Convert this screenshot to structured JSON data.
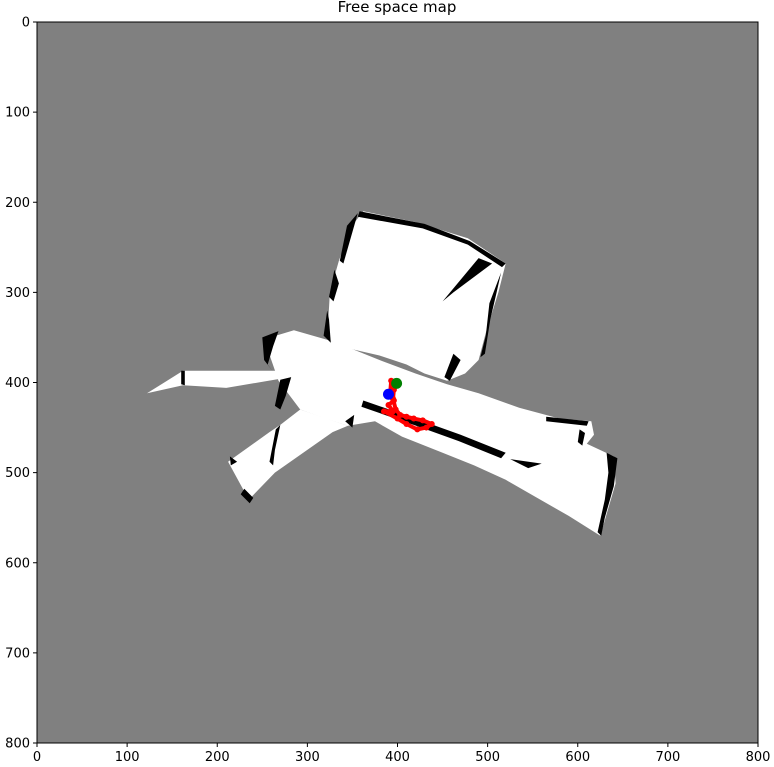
{
  "chart_data": {
    "type": "heatmap",
    "title": "Free space map",
    "xlabel": "",
    "ylabel": "",
    "xlim": [
      0,
      800
    ],
    "ylim": [
      800,
      0
    ],
    "x_ticks": [
      0,
      100,
      200,
      300,
      400,
      500,
      600,
      700,
      800
    ],
    "y_ticks": [
      0,
      100,
      200,
      300,
      400,
      500,
      600,
      700,
      800
    ],
    "grid": false,
    "colors": {
      "unknown": "#808080",
      "free": "#ffffff",
      "obstacle": "#000000",
      "trajectory": "#ff0000",
      "start": "#008000",
      "current": "#0000ff"
    },
    "free_regions": [
      {
        "name": "room",
        "points": [
          [
            362,
            210
          ],
          [
            420,
            222
          ],
          [
            478,
            240
          ],
          [
            520,
            268
          ],
          [
            512,
            300
          ],
          [
            498,
            345
          ],
          [
            490,
            375
          ],
          [
            475,
            390
          ],
          [
            455,
            398
          ],
          [
            430,
            390
          ],
          [
            410,
            380
          ],
          [
            380,
            370
          ],
          [
            345,
            362
          ],
          [
            322,
            352
          ],
          [
            325,
            300
          ],
          [
            335,
            265
          ],
          [
            348,
            228
          ]
        ]
      },
      {
        "name": "corridor",
        "points": [
          [
            252,
            352
          ],
          [
            285,
            342
          ],
          [
            330,
            355
          ],
          [
            380,
            375
          ],
          [
            420,
            390
          ],
          [
            455,
            402
          ],
          [
            490,
            412
          ],
          [
            535,
            428
          ],
          [
            580,
            440
          ],
          [
            615,
            443
          ],
          [
            618,
            458
          ],
          [
            610,
            468
          ],
          [
            640,
            482
          ],
          [
            642,
            512
          ],
          [
            625,
            570
          ],
          [
            590,
            548
          ],
          [
            555,
            528
          ],
          [
            520,
            508
          ],
          [
            485,
            492
          ],
          [
            450,
            478
          ],
          [
            405,
            460
          ],
          [
            375,
            443
          ],
          [
            345,
            448
          ],
          [
            320,
            440
          ],
          [
            292,
            430
          ],
          [
            268,
            398
          ]
        ]
      },
      {
        "name": "left-arm",
        "points": [
          [
            122,
            412
          ],
          [
            162,
            387
          ],
          [
            278,
            387
          ],
          [
            275,
            395
          ],
          [
            210,
            406
          ],
          [
            162,
            403
          ]
        ]
      },
      {
        "name": "lower-left-arm",
        "points": [
          [
            212,
            488
          ],
          [
            258,
            455
          ],
          [
            270,
            447
          ],
          [
            292,
            430
          ],
          [
            330,
            443
          ],
          [
            345,
            448
          ],
          [
            328,
            455
          ],
          [
            264,
            500
          ],
          [
            235,
            530
          ]
        ]
      }
    ],
    "obstacles": [
      {
        "points": [
          [
            358,
            210
          ],
          [
            430,
            224
          ],
          [
            480,
            243
          ],
          [
            520,
            268
          ],
          [
            516,
            272
          ],
          [
            478,
            247
          ],
          [
            428,
            229
          ],
          [
            356,
            216
          ]
        ]
      },
      {
        "points": [
          [
            336,
            265
          ],
          [
            344,
            226
          ],
          [
            356,
            212
          ],
          [
            352,
            226
          ],
          [
            340,
            268
          ]
        ]
      },
      {
        "points": [
          [
            324,
            305
          ],
          [
            330,
            275
          ],
          [
            335,
            290
          ],
          [
            329,
            310
          ]
        ]
      },
      {
        "points": [
          [
            322,
            320
          ],
          [
            318,
            348
          ],
          [
            326,
            356
          ],
          [
            324,
            330
          ]
        ]
      },
      {
        "points": [
          [
            515,
            278
          ],
          [
            502,
            312
          ],
          [
            498,
            348
          ],
          [
            492,
            372
          ],
          [
            497,
            368
          ],
          [
            503,
            330
          ],
          [
            510,
            300
          ]
        ]
      },
      {
        "points": [
          [
            490,
            262
          ],
          [
            505,
            268
          ],
          [
            462,
            300
          ],
          [
            450,
            310
          ]
        ]
      },
      {
        "points": [
          [
            462,
            368
          ],
          [
            470,
            375
          ],
          [
            458,
            398
          ],
          [
            452,
            394
          ]
        ]
      },
      {
        "points": [
          [
            362,
            420
          ],
          [
            420,
            440
          ],
          [
            470,
            458
          ],
          [
            520,
            478
          ],
          [
            515,
            484
          ],
          [
            468,
            465
          ],
          [
            418,
            447
          ],
          [
            360,
            427
          ]
        ]
      },
      {
        "points": [
          [
            525,
            485
          ],
          [
            560,
            490
          ],
          [
            545,
            495
          ]
        ]
      },
      {
        "points": [
          [
            632,
            478
          ],
          [
            644,
            484
          ],
          [
            640,
            515
          ],
          [
            630,
            550
          ],
          [
            626,
            570
          ],
          [
            622,
            566
          ],
          [
            630,
            530
          ],
          [
            634,
            500
          ]
        ]
      },
      {
        "points": [
          [
            250,
            350
          ],
          [
            268,
            343
          ],
          [
            262,
            360
          ],
          [
            256,
            380
          ],
          [
            262,
            388
          ],
          [
            252,
            375
          ]
        ]
      },
      {
        "points": [
          [
            270,
            397
          ],
          [
            282,
            394
          ],
          [
            276,
            415
          ],
          [
            270,
            430
          ],
          [
            264,
            426
          ]
        ]
      },
      {
        "points": [
          [
            265,
            452
          ],
          [
            270,
            447
          ],
          [
            264,
            475
          ],
          [
            262,
            492
          ],
          [
            258,
            488
          ]
        ]
      },
      {
        "points": [
          [
            230,
            518
          ],
          [
            240,
            528
          ],
          [
            236,
            534
          ],
          [
            226,
            524
          ]
        ]
      },
      {
        "points": [
          [
            214,
            482
          ],
          [
            222,
            488
          ],
          [
            215,
            492
          ]
        ]
      },
      {
        "points": [
          [
            160,
            387
          ],
          [
            164,
            387
          ],
          [
            164,
            403
          ],
          [
            160,
            402
          ]
        ]
      },
      {
        "points": [
          [
            342,
            443
          ],
          [
            352,
            436
          ],
          [
            350,
            450
          ]
        ]
      },
      {
        "points": [
          [
            565,
            438
          ],
          [
            612,
            443
          ],
          [
            610,
            448
          ],
          [
            565,
            443
          ]
        ]
      },
      {
        "points": [
          [
            602,
            452
          ],
          [
            608,
            456
          ],
          [
            605,
            470
          ],
          [
            600,
            466
          ]
        ]
      }
    ],
    "trajectory": [
      [
        393,
        398
      ],
      [
        392,
        410
      ],
      [
        396,
        420
      ],
      [
        390,
        425
      ],
      [
        395,
        432
      ],
      [
        385,
        432
      ],
      [
        400,
        440
      ],
      [
        410,
        446
      ],
      [
        422,
        452
      ],
      [
        432,
        450
      ],
      [
        438,
        446
      ],
      [
        428,
        442
      ],
      [
        418,
        440
      ],
      [
        410,
        438
      ],
      [
        403,
        436
      ],
      [
        398,
        430
      ],
      [
        395,
        418
      ],
      [
        396,
        408
      ]
    ],
    "start_point": [
      399,
      401
    ],
    "current_point": [
      390,
      413
    ]
  }
}
